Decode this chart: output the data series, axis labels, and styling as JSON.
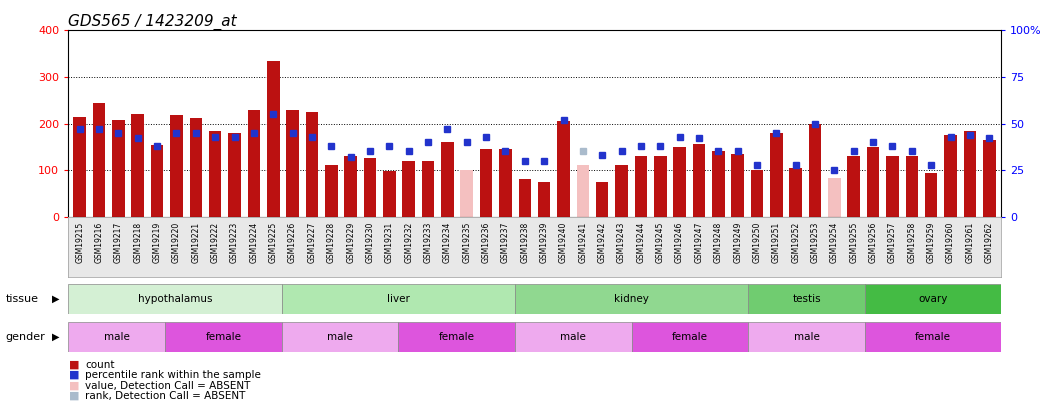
{
  "title": "GDS565 / 1423209_at",
  "samples": [
    "GSM19215",
    "GSM19216",
    "GSM19217",
    "GSM19218",
    "GSM19219",
    "GSM19220",
    "GSM19221",
    "GSM19222",
    "GSM19223",
    "GSM19224",
    "GSM19225",
    "GSM19226",
    "GSM19227",
    "GSM19228",
    "GSM19229",
    "GSM19230",
    "GSM19231",
    "GSM19232",
    "GSM19233",
    "GSM19234",
    "GSM19235",
    "GSM19236",
    "GSM19237",
    "GSM19238",
    "GSM19239",
    "GSM19240",
    "GSM19241",
    "GSM19242",
    "GSM19243",
    "GSM19244",
    "GSM19245",
    "GSM19246",
    "GSM19247",
    "GSM19248",
    "GSM19249",
    "GSM19250",
    "GSM19251",
    "GSM19252",
    "GSM19253",
    "GSM19254",
    "GSM19255",
    "GSM19256",
    "GSM19257",
    "GSM19258",
    "GSM19259",
    "GSM19260",
    "GSM19261",
    "GSM19262"
  ],
  "bar_values": [
    215,
    243,
    207,
    220,
    153,
    218,
    212,
    185,
    180,
    228,
    335,
    230,
    225,
    110,
    130,
    125,
    98,
    120,
    120,
    160,
    100,
    145,
    145,
    80,
    75,
    205,
    110,
    75,
    110,
    130,
    130,
    150,
    155,
    140,
    135,
    100,
    180,
    105,
    200,
    83,
    130,
    150,
    130,
    130,
    93,
    175,
    183,
    165
  ],
  "bar_absent": [
    false,
    false,
    false,
    false,
    false,
    false,
    false,
    false,
    false,
    false,
    false,
    false,
    false,
    false,
    false,
    false,
    false,
    false,
    false,
    false,
    true,
    false,
    false,
    false,
    false,
    false,
    true,
    false,
    false,
    false,
    false,
    false,
    false,
    false,
    false,
    false,
    false,
    false,
    false,
    true,
    false,
    false,
    false,
    false,
    false,
    false,
    false,
    false
  ],
  "dot_values": [
    47,
    47,
    45,
    42,
    38,
    45,
    45,
    43,
    43,
    45,
    55,
    45,
    43,
    38,
    32,
    35,
    38,
    35,
    40,
    47,
    40,
    43,
    35,
    30,
    30,
    52,
    35,
    33,
    35,
    38,
    38,
    43,
    42,
    35,
    35,
    28,
    45,
    28,
    50,
    25,
    35,
    40,
    38,
    35,
    28,
    43,
    44,
    42
  ],
  "dot_absent": [
    false,
    false,
    false,
    false,
    false,
    false,
    false,
    false,
    false,
    false,
    false,
    false,
    false,
    false,
    false,
    false,
    false,
    false,
    false,
    false,
    false,
    false,
    false,
    false,
    false,
    false,
    true,
    false,
    false,
    false,
    false,
    false,
    false,
    false,
    false,
    false,
    false,
    false,
    false,
    false,
    false,
    false,
    false,
    false,
    false,
    false,
    false,
    false
  ],
  "tissues": [
    {
      "label": "hypothalamus",
      "start": 0,
      "end": 11,
      "color": "#d4f0d4"
    },
    {
      "label": "liver",
      "start": 11,
      "end": 23,
      "color": "#b0e8b0"
    },
    {
      "label": "kidney",
      "start": 23,
      "end": 35,
      "color": "#90d890"
    },
    {
      "label": "testis",
      "start": 35,
      "end": 41,
      "color": "#70cc70"
    },
    {
      "label": "ovary",
      "start": 41,
      "end": 48,
      "color": "#44bb44"
    }
  ],
  "genders": [
    {
      "label": "male",
      "start": 0,
      "end": 5,
      "color": "#eeaaee"
    },
    {
      "label": "female",
      "start": 5,
      "end": 11,
      "color": "#dd55dd"
    },
    {
      "label": "male",
      "start": 11,
      "end": 17,
      "color": "#eeaaee"
    },
    {
      "label": "female",
      "start": 17,
      "end": 23,
      "color": "#dd55dd"
    },
    {
      "label": "male",
      "start": 23,
      "end": 29,
      "color": "#eeaaee"
    },
    {
      "label": "female",
      "start": 29,
      "end": 35,
      "color": "#dd55dd"
    },
    {
      "label": "male",
      "start": 35,
      "end": 41,
      "color": "#eeaaee"
    },
    {
      "label": "female",
      "start": 41,
      "end": 48,
      "color": "#dd55dd"
    }
  ],
  "bar_color_normal": "#bb1111",
  "bar_color_absent": "#f4c0c0",
  "dot_color_normal": "#2233cc",
  "dot_color_absent": "#aabbcc",
  "bg_color": "#ffffff",
  "xtick_bg": "#e8e8e8",
  "title_fontsize": 11,
  "legend_items": [
    {
      "color": "#bb1111",
      "label": "count"
    },
    {
      "color": "#2233cc",
      "label": "percentile rank within the sample"
    },
    {
      "color": "#f4c0c0",
      "label": "value, Detection Call = ABSENT"
    },
    {
      "color": "#aabbcc",
      "label": "rank, Detection Call = ABSENT"
    }
  ]
}
